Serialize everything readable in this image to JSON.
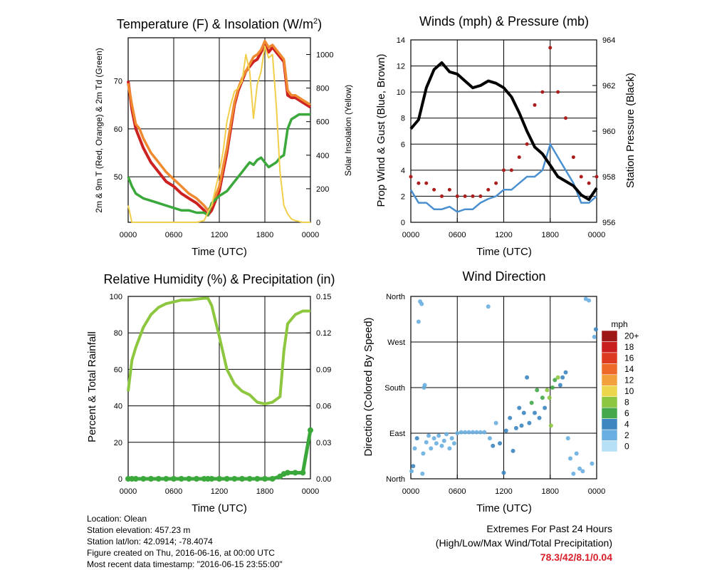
{
  "panels": {
    "temperature": {
      "title": "Temperature (F) & Insolation (W/m",
      "title_sup": "2",
      "title_end": ")",
      "ylabel": "2m & 9m T (Red, Orange) & 2m Td (Green)",
      "y2label": "Solar Insolation (Yellow)",
      "xlabel": "Time (UTC)"
    },
    "winds": {
      "title": "Winds (mph) & Pressure (mb)",
      "ylabel": "Prop Wind & Gust (Blue, Brown)",
      "y2label": "Station Pressure (Black)",
      "xlabel": "Time (UTC)"
    },
    "humidity": {
      "title": "Relative Humidity (%) & Precipitation (in)",
      "ylabel": "Percent & Total Rainfall",
      "xlabel": "Time (UTC)"
    },
    "direction": {
      "title": "Wind Direction",
      "ylabel": "Direction (Colored By Speed)",
      "xlabel": "Time (UTC)",
      "legend_title": "mph"
    }
  },
  "info_lines": [
    "Location: Olean",
    "Station elevation: 457.23 m",
    "Station lat/lon: 42.0914; -78.4074",
    "Figure created on Thu, 2016-06-16, at 00:00 UTC",
    "Most recent data timestamp: \"2016-06-15 23:55:00\""
  ],
  "extremes": {
    "line1": "Extremes For Past 24 Hours",
    "line2": "(High/Low/Max Wind/Total Precipitation)",
    "value": "78.3/42/8.1/0.04"
  },
  "colors": {
    "temp2m": "#cc2222",
    "temp9m": "#f08a30",
    "dewpoint": "#3aa83a",
    "solar": "#f2cf4a",
    "wind": "#4a90d0",
    "gust": "#aa1e1e",
    "pressure": "#000000",
    "rh": "#8dc63f",
    "precip": "#3aa83a"
  },
  "chart_data": [
    {
      "type": "line",
      "title": "Temperature (F) & Insolation (W/m2)",
      "xlabel": "Time (UTC)",
      "ylabel": "2m & 9m T (Red, Orange) & 2m Td (Green)",
      "y2label": "Solar Insolation (Yellow)",
      "x_ticks": [
        "0000",
        "0600",
        "1200",
        "1800",
        "0000"
      ],
      "ylim": [
        40.5,
        79
      ],
      "y_ticks": [
        50,
        60,
        70
      ],
      "y2lim": [
        0,
        1100
      ],
      "y2_ticks": [
        0,
        200,
        400,
        600,
        800,
        1000
      ],
      "x_hours": [
        0,
        0.5,
        1,
        1.5,
        2,
        3,
        4,
        5,
        6,
        7,
        8,
        9,
        10,
        10.5,
        11,
        12,
        12.5,
        13,
        13.5,
        14,
        14.5,
        15,
        15.5,
        16,
        16.5,
        17,
        17.5,
        18,
        18.5,
        19,
        19.5,
        20,
        20.5,
        21,
        21.5,
        22,
        22.5,
        23,
        23.5,
        24
      ],
      "series": [
        {
          "name": "2m T",
          "axis": "left",
          "values": [
            70,
            64,
            60,
            58,
            56,
            53,
            51,
            49,
            48,
            46.5,
            45.5,
            44.5,
            43,
            42,
            43,
            47,
            51,
            55,
            60,
            65,
            68,
            70,
            72,
            73,
            74,
            74.5,
            76,
            77.5,
            76,
            77,
            76,
            75,
            74,
            67,
            66.5,
            66.5,
            66,
            65.5,
            65,
            64.5
          ]
        },
        {
          "name": "9m T",
          "axis": "left",
          "values": [
            69.5,
            65,
            61,
            60,
            58,
            55,
            53,
            51,
            49.5,
            48,
            46.5,
            45.5,
            44,
            43,
            44,
            48,
            52,
            56,
            61,
            65.5,
            68.5,
            70.5,
            72,
            73.5,
            75,
            75.5,
            76.5,
            78.3,
            77,
            77.5,
            76.5,
            75.5,
            74.5,
            68,
            67,
            67,
            66.5,
            66,
            65.5,
            65
          ]
        },
        {
          "name": "2m Td",
          "axis": "left",
          "values": [
            50,
            48,
            46.5,
            46,
            45.5,
            45,
            44.5,
            44,
            43.5,
            43,
            43,
            42.5,
            42.5,
            42,
            44.5,
            46,
            46.5,
            47,
            48,
            49,
            50,
            51,
            52,
            53,
            52.5,
            53.5,
            54,
            53,
            52,
            52.5,
            53,
            54,
            54.5,
            60,
            62,
            62.5,
            63,
            63,
            63,
            63
          ]
        },
        {
          "name": "Solar Insolation",
          "axis": "right",
          "values": [
            100,
            0,
            0,
            0,
            0,
            0,
            0,
            0,
            0,
            0,
            0,
            0,
            10,
            60,
            100,
            300,
            420,
            600,
            700,
            780,
            800,
            840,
            1000,
            900,
            620,
            820,
            900,
            1050,
            980,
            1000,
            700,
            300,
            100,
            50,
            20,
            10,
            5,
            0,
            0,
            0
          ]
        }
      ]
    },
    {
      "type": "line",
      "title": "Winds (mph) & Pressure (mb)",
      "xlabel": "Time (UTC)",
      "ylabel": "Prop Wind & Gust (Blue, Brown)",
      "y2label": "Station Pressure (Black)",
      "x_ticks": [
        "0000",
        "0600",
        "1200",
        "1800",
        "0000"
      ],
      "ylim": [
        0,
        14
      ],
      "y_ticks": [
        0,
        2,
        4,
        6,
        8,
        10,
        12,
        14
      ],
      "y2lim": [
        956,
        964
      ],
      "y2_ticks": [
        956,
        958,
        960,
        962,
        964
      ],
      "x_hours": [
        0,
        1,
        2,
        3,
        4,
        5,
        6,
        7,
        8,
        9,
        10,
        11,
        12,
        13,
        14,
        15,
        16,
        17,
        18,
        19,
        20,
        21,
        22,
        23,
        24
      ],
      "series": [
        {
          "name": "Prop Wind",
          "axis": "left",
          "values": [
            2.5,
            1.5,
            1.5,
            1,
            1,
            1.2,
            0.8,
            1,
            1,
            1.5,
            1.8,
            2,
            2.5,
            2.5,
            3,
            3.5,
            3.5,
            4,
            6,
            5,
            4,
            3,
            1.5,
            1.5,
            2
          ]
        },
        {
          "name": "Gust",
          "axis": "left",
          "values": [
            3.5,
            3,
            3,
            2.5,
            2,
            2.5,
            2,
            2,
            2,
            2,
            2.5,
            3,
            4,
            4,
            5,
            6,
            9,
            10,
            13.4,
            10,
            8,
            5,
            3.5,
            3,
            3.5
          ]
        },
        {
          "name": "Station Pressure",
          "axis": "right",
          "values": [
            960.1,
            960.5,
            961.9,
            962.7,
            963.0,
            962.6,
            962.5,
            962.2,
            961.9,
            962.0,
            962.2,
            962.1,
            961.9,
            961.5,
            960.8,
            960.0,
            959.3,
            959.0,
            958.5,
            958.0,
            957.8,
            957.6,
            957.2,
            957.0,
            957.5
          ]
        }
      ]
    },
    {
      "type": "line",
      "title": "Relative Humidity (%) & Precipitation (in)",
      "xlabel": "Time (UTC)",
      "ylabel": "Percent & Total Rainfall",
      "x_ticks": [
        "0000",
        "0600",
        "1200",
        "1800",
        "0000"
      ],
      "ylim": [
        0,
        100
      ],
      "y_ticks": [
        0,
        20,
        40,
        60,
        80,
        100
      ],
      "y2lim": [
        0,
        0.15
      ],
      "y2_ticks": [
        "0.00",
        "0.03",
        "0.06",
        "0.09",
        "0.12",
        "0.15"
      ],
      "x_hours": [
        0,
        0.5,
        1,
        2,
        3,
        4,
        5,
        6,
        7,
        8,
        9,
        10,
        10.5,
        11,
        12,
        13,
        14,
        15,
        16,
        17,
        18,
        19,
        20,
        20.5,
        21,
        22,
        23,
        24
      ],
      "series": [
        {
          "name": "Relative Humidity",
          "axis": "left",
          "values": [
            48,
            65,
            72,
            83,
            90,
            94,
            96,
            97,
            98,
            98,
            98.5,
            99,
            99,
            95,
            78,
            60,
            52,
            48,
            46,
            42,
            41,
            42,
            45,
            70,
            85,
            90,
            92,
            92
          ]
        },
        {
          "name": "Precipitation",
          "axis": "right",
          "values": [
            0,
            0,
            0,
            0,
            0,
            0,
            0,
            0,
            0,
            0,
            0,
            0,
            0,
            0,
            0,
            0,
            0,
            0,
            0,
            0,
            0,
            0,
            0.002,
            0.004,
            0.005,
            0.005,
            0.005,
            0.04
          ]
        }
      ]
    },
    {
      "type": "scatter",
      "title": "Wind Direction",
      "xlabel": "Time (UTC)",
      "ylabel": "Direction (Colored By Speed)",
      "x_ticks": [
        "0000",
        "0600",
        "1200",
        "1800",
        "0000"
      ],
      "y_categories": [
        "North",
        "East",
        "South",
        "West",
        "North"
      ],
      "y_degrees": [
        0,
        90,
        180,
        270,
        360
      ],
      "legend_title": "mph",
      "legend_labels": [
        "20+",
        "18",
        "16",
        "14",
        "12",
        "10",
        "8",
        "6",
        "4",
        "2",
        "0"
      ],
      "legend_colors": [
        "#9e1717",
        "#c81e1e",
        "#dd3a22",
        "#ee6a2a",
        "#f2a03c",
        "#ecd74c",
        "#8dc63f",
        "#45a84a",
        "#3d86c0",
        "#69aee0",
        "#b7e0f6"
      ],
      "points": [
        {
          "t": 0.1,
          "deg": 15,
          "mph": 2
        },
        {
          "t": 0.3,
          "deg": 25,
          "mph": 3
        },
        {
          "t": 0.5,
          "deg": 60,
          "mph": 2
        },
        {
          "t": 0.8,
          "deg": 80,
          "mph": 3
        },
        {
          "t": 1.0,
          "deg": 310,
          "mph": 1
        },
        {
          "t": 1.2,
          "deg": 350,
          "mph": 1
        },
        {
          "t": 1.4,
          "deg": 345,
          "mph": 1
        },
        {
          "t": 1.5,
          "deg": 10,
          "mph": 2
        },
        {
          "t": 1.6,
          "deg": 50,
          "mph": 2
        },
        {
          "t": 1.7,
          "deg": 180,
          "mph": 1
        },
        {
          "t": 1.8,
          "deg": 185,
          "mph": 1
        },
        {
          "t": 2.0,
          "deg": 72,
          "mph": 2
        },
        {
          "t": 2.3,
          "deg": 85,
          "mph": 1
        },
        {
          "t": 2.6,
          "deg": 60,
          "mph": 2
        },
        {
          "t": 3.0,
          "deg": 80,
          "mph": 1
        },
        {
          "t": 3.3,
          "deg": 70,
          "mph": 2
        },
        {
          "t": 3.6,
          "deg": 85,
          "mph": 1
        },
        {
          "t": 4.0,
          "deg": 65,
          "mph": 2
        },
        {
          "t": 4.3,
          "deg": 75,
          "mph": 1
        },
        {
          "t": 4.6,
          "deg": 88,
          "mph": 2
        },
        {
          "t": 5.0,
          "deg": 60,
          "mph": 1
        },
        {
          "t": 5.3,
          "deg": 80,
          "mph": 2
        },
        {
          "t": 5.6,
          "deg": 70,
          "mph": 1
        },
        {
          "t": 6.0,
          "deg": 90,
          "mph": 1
        },
        {
          "t": 6.5,
          "deg": 92,
          "mph": 1
        },
        {
          "t": 7.0,
          "deg": 92,
          "mph": 1
        },
        {
          "t": 7.5,
          "deg": 92,
          "mph": 1
        },
        {
          "t": 8.0,
          "deg": 92,
          "mph": 1
        },
        {
          "t": 8.5,
          "deg": 92,
          "mph": 1
        },
        {
          "t": 9.0,
          "deg": 92,
          "mph": 1
        },
        {
          "t": 9.5,
          "deg": 92,
          "mph": 1
        },
        {
          "t": 10.0,
          "deg": 340,
          "mph": 1
        },
        {
          "t": 10.2,
          "deg": 80,
          "mph": 2
        },
        {
          "t": 10.6,
          "deg": 65,
          "mph": 3
        },
        {
          "t": 11.0,
          "deg": 110,
          "mph": 2
        },
        {
          "t": 11.5,
          "deg": 70,
          "mph": 3
        },
        {
          "t": 12.0,
          "deg": 12,
          "mph": 3
        },
        {
          "t": 12.3,
          "deg": 95,
          "mph": 3
        },
        {
          "t": 12.8,
          "deg": 120,
          "mph": 4
        },
        {
          "t": 13.2,
          "deg": 55,
          "mph": 3
        },
        {
          "t": 13.6,
          "deg": 100,
          "mph": 3
        },
        {
          "t": 14.0,
          "deg": 140,
          "mph": 4
        },
        {
          "t": 14.3,
          "deg": 105,
          "mph": 3
        },
        {
          "t": 14.6,
          "deg": 130,
          "mph": 4
        },
        {
          "t": 15.0,
          "deg": 200,
          "mph": 4
        },
        {
          "t": 15.3,
          "deg": 110,
          "mph": 4
        },
        {
          "t": 15.6,
          "deg": 150,
          "mph": 5
        },
        {
          "t": 16.0,
          "deg": 130,
          "mph": 4
        },
        {
          "t": 16.3,
          "deg": 175,
          "mph": 5
        },
        {
          "t": 16.6,
          "deg": 120,
          "mph": 4
        },
        {
          "t": 17.0,
          "deg": 160,
          "mph": 5
        },
        {
          "t": 17.3,
          "deg": 140,
          "mph": 4
        },
        {
          "t": 17.6,
          "deg": 175,
          "mph": 7
        },
        {
          "t": 17.9,
          "deg": 160,
          "mph": 8
        },
        {
          "t": 18.1,
          "deg": 105,
          "mph": 7
        },
        {
          "t": 18.3,
          "deg": 180,
          "mph": 6
        },
        {
          "t": 18.6,
          "deg": 195,
          "mph": 6
        },
        {
          "t": 19.0,
          "deg": 200,
          "mph": 7
        },
        {
          "t": 19.3,
          "deg": 185,
          "mph": 4
        },
        {
          "t": 19.6,
          "deg": 200,
          "mph": 3
        },
        {
          "t": 20.0,
          "deg": 210,
          "mph": 4
        },
        {
          "t": 20.3,
          "deg": 80,
          "mph": 2
        },
        {
          "t": 20.6,
          "deg": 40,
          "mph": 2
        },
        {
          "t": 21.0,
          "deg": 10,
          "mph": 1
        },
        {
          "t": 21.4,
          "deg": 50,
          "mph": 1
        },
        {
          "t": 21.8,
          "deg": 20,
          "mph": 2
        },
        {
          "t": 22.2,
          "deg": 15,
          "mph": 1
        },
        {
          "t": 22.6,
          "deg": 355,
          "mph": 1
        },
        {
          "t": 23.0,
          "deg": 352,
          "mph": 2
        },
        {
          "t": 23.4,
          "deg": 30,
          "mph": 1
        },
        {
          "t": 23.7,
          "deg": 280,
          "mph": 2
        },
        {
          "t": 23.9,
          "deg": 295,
          "mph": 3
        }
      ]
    }
  ]
}
